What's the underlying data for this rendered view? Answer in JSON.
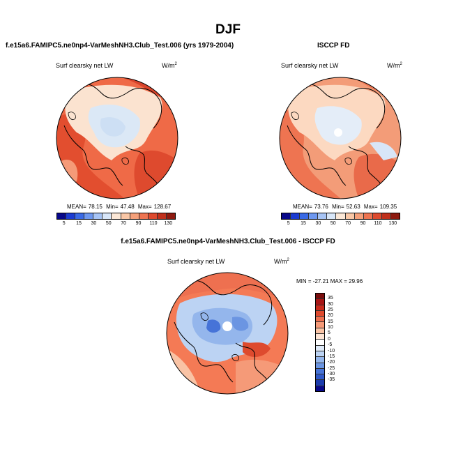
{
  "page": {
    "title": "DJF"
  },
  "panels": {
    "model": {
      "title": "f.e15a6.FAMIPC5.ne0np4-VarMeshNH3.Club_Test.006 (yrs 1979-2004)",
      "variable": "Surf clearsky net LW",
      "units_base": "W/m",
      "units_exp": "2",
      "mean_label": "MEAN=",
      "mean": "78.15",
      "min_label": "Min=",
      "min": "47.48",
      "max_label": "Max=",
      "max": "128.67"
    },
    "obs": {
      "title": "ISCCP FD",
      "variable": "Surf clearsky net LW",
      "units_base": "W/m",
      "units_exp": "2",
      "mean_label": "MEAN=",
      "mean": "73.76",
      "min_label": "Min=",
      "min": "52.63",
      "max_label": "Max=",
      "max": "109.35"
    },
    "diff": {
      "title": "f.e15a6.FAMIPC5.ne0np4-VarMeshNH3.Club_Test.006 - ISCCP FD",
      "variable": "Surf clearsky net LW",
      "units_base": "W/m",
      "units_exp": "2",
      "minmax": "MIN = -27.21  MAX =  29.96"
    }
  },
  "colorbars": {
    "abs": {
      "levels": [
        "5",
        "15",
        "30",
        "50",
        "70",
        "90",
        "110",
        "130"
      ],
      "colors": [
        "#08088a",
        "#1c3cd2",
        "#3a6ae6",
        "#6e98f0",
        "#a7c4f5",
        "#d8e6f8",
        "#fbe7d6",
        "#f9c7a6",
        "#f5a07a",
        "#ee7451",
        "#dd4a2e",
        "#c0301c",
        "#8e1a10"
      ]
    },
    "diff": {
      "levels": [
        "35",
        "30",
        "25",
        "20",
        "15",
        "10",
        "5",
        "0",
        "-5",
        "-10",
        "-15",
        "-20",
        "-25",
        "-30",
        "-35"
      ],
      "colors": [
        "#7a0d0d",
        "#a81616",
        "#c92a1c",
        "#de4a2e",
        "#ee7050",
        "#f59a78",
        "#f9c3a5",
        "#fde4d4",
        "#ffffff",
        "#dfeaf8",
        "#bcd3f3",
        "#94b6ec",
        "#6b95e2",
        "#4673d8",
        "#2f58c8",
        "#1c3cae",
        "#08088a"
      ]
    }
  },
  "maps": {
    "model": {
      "ocean_color": "#ef6a47",
      "ice_color": "#dbe8f6",
      "land_color": "#fbe3d0"
    },
    "obs": {
      "ocean_color": "#f39c78",
      "ice_color": "#e4edf8",
      "land_color": "#fcd9c1"
    },
    "diff": {
      "ocean_color": "#f47a55",
      "ice_color": "#a9c3ee",
      "land_color": "#f4f4fb"
    }
  }
}
